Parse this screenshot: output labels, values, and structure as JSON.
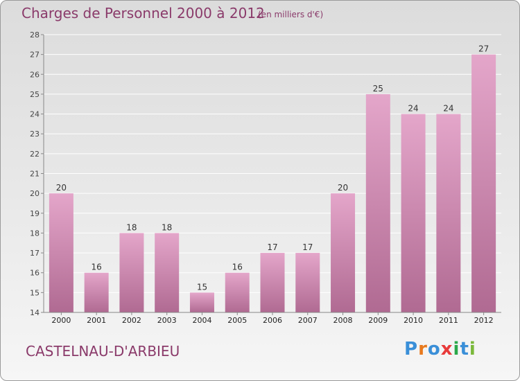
{
  "header": {
    "title": "Charges de Personnel 2000 à 2012",
    "subtitle": "(en milliers d'€)"
  },
  "footer": {
    "commune": "CASTELNAU-D'ARBIEU",
    "logo_letters": [
      "P",
      "r",
      "o",
      "x",
      "i",
      "t",
      "i"
    ],
    "logo_colors": [
      "#3a8fd8",
      "#e87a1e",
      "#3a8fd8",
      "#e83a3a",
      "#2aa84a",
      "#3a8fd8",
      "#7ab83a"
    ]
  },
  "colors": {
    "bar_top": "#e4a6ca",
    "bar_bottom": "#b06a92",
    "grid": "#ffffff",
    "axis": "#888888"
  },
  "chart_data": {
    "type": "bar",
    "categories": [
      "2000",
      "2001",
      "2002",
      "2003",
      "2004",
      "2005",
      "2006",
      "2007",
      "2008",
      "2009",
      "2010",
      "2011",
      "2012"
    ],
    "values": [
      20,
      16,
      18,
      18,
      15,
      16,
      17,
      17,
      20,
      25,
      24,
      24,
      27
    ],
    "data_labels": [
      "20",
      "16",
      "18",
      "18",
      "15",
      "16",
      "17",
      "17",
      "20",
      "25",
      "24",
      "24",
      "27"
    ],
    "ylim": [
      14,
      28
    ],
    "yticks": [
      14,
      15,
      16,
      17,
      18,
      19,
      20,
      21,
      22,
      23,
      24,
      25,
      26,
      27,
      28
    ],
    "grid": true,
    "title": "Charges de Personnel 2000 à 2012",
    "xlabel": "",
    "ylabel": ""
  }
}
